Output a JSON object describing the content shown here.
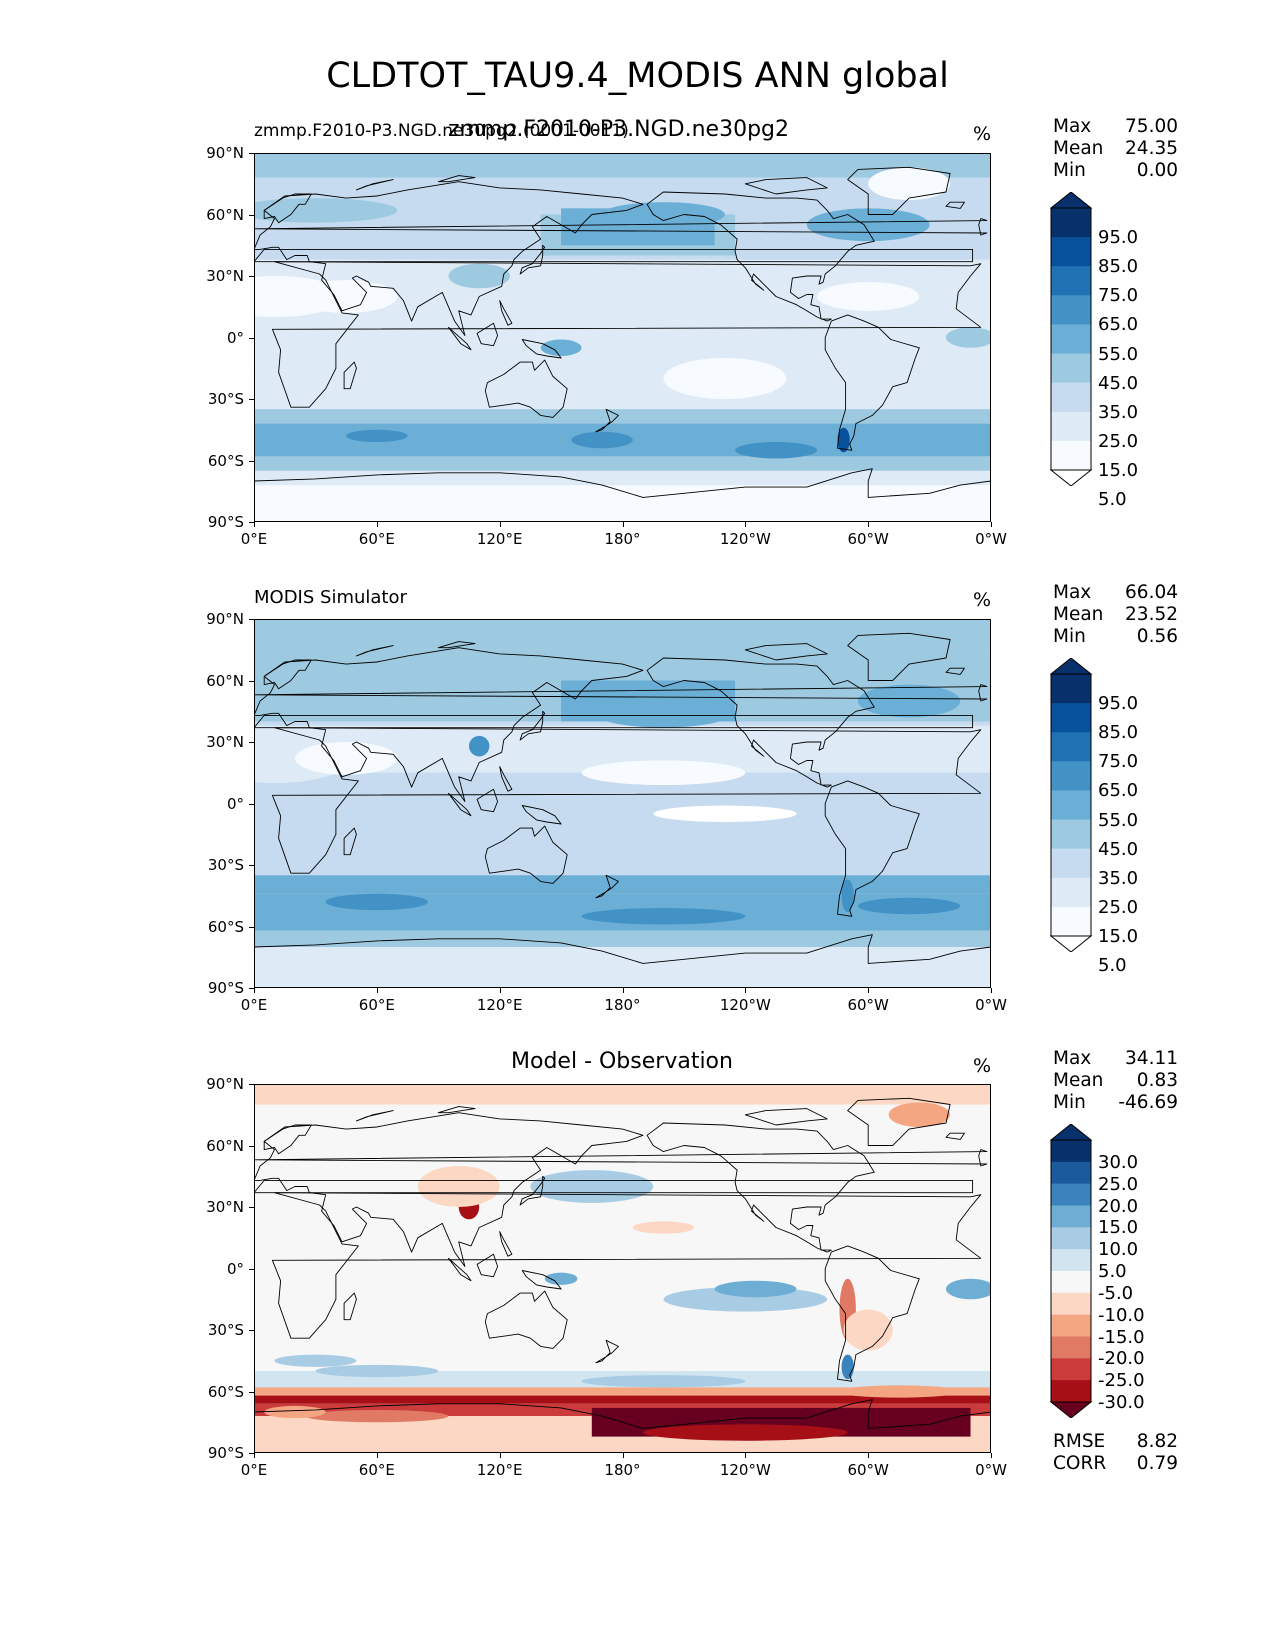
{
  "title": "CLDTOT_TAU9.4_MODIS ANN global",
  "x_ticks": [
    "0°E",
    "60°E",
    "120°E",
    "180°",
    "120°W",
    "60°W",
    "0°W"
  ],
  "y_ticks": [
    "90°N",
    "60°N",
    "30°N",
    "0°",
    "30°S",
    "60°S",
    "90°S"
  ],
  "panels": [
    {
      "subtitle_left": "zmmp.F2010-P3.NGD.ne30pg2 (0001-0011)",
      "subtitle_center": "zmmp.F2010-P3.NGD.ne30pg2",
      "units": "%",
      "stats": [
        {
          "label": "Max",
          "value": "75.00"
        },
        {
          "label": "Mean",
          "value": "24.35"
        },
        {
          "label": "Min",
          "value": "0.00"
        }
      ],
      "colorbar_labels": [
        "95.0",
        "85.0",
        "75.0",
        "65.0",
        "55.0",
        "45.0",
        "35.0",
        "25.0",
        "15.0",
        "5.0"
      ]
    },
    {
      "subtitle_left": "MODIS Simulator",
      "subtitle_center": "",
      "units": "%",
      "stats": [
        {
          "label": "Max",
          "value": "66.04"
        },
        {
          "label": "Mean",
          "value": "23.52"
        },
        {
          "label": "Min",
          "value": "0.56"
        }
      ],
      "colorbar_labels": [
        "95.0",
        "85.0",
        "75.0",
        "65.0",
        "55.0",
        "45.0",
        "35.0",
        "25.0",
        "15.0",
        "5.0"
      ]
    },
    {
      "subtitle_left": "",
      "subtitle_center": "Model - Observation",
      "units": "%",
      "stats": [
        {
          "label": "Max",
          "value": "34.11"
        },
        {
          "label": "Mean",
          "value": "0.83"
        },
        {
          "label": "Min",
          "value": "-46.69"
        }
      ],
      "colorbar_labels": [
        "30.0",
        "25.0",
        "20.0",
        "15.0",
        "10.0",
        "5.0",
        "-5.0",
        "-10.0",
        "-15.0",
        "-20.0",
        "-25.0",
        "-30.0"
      ],
      "metrics": [
        {
          "label": "RMSE",
          "value": "8.82"
        },
        {
          "label": "CORR",
          "value": "0.79"
        }
      ]
    }
  ],
  "colors": {
    "blues": [
      "#ffffff",
      "#f7fbff",
      "#deebf7",
      "#c6dbef",
      "#9ecae1",
      "#6baed6",
      "#4292c6",
      "#2171b5",
      "#08519c",
      "#08306b",
      "#06244f"
    ],
    "diverging": [
      "#67001f",
      "#a50f15",
      "#cb3b3b",
      "#e07a64",
      "#f4a582",
      "#fbd7c4",
      "#f7f7f7",
      "#d1e5f0",
      "#a7cce4",
      "#6faed4",
      "#3a83bd",
      "#1b5a9c",
      "#08306b"
    ]
  }
}
